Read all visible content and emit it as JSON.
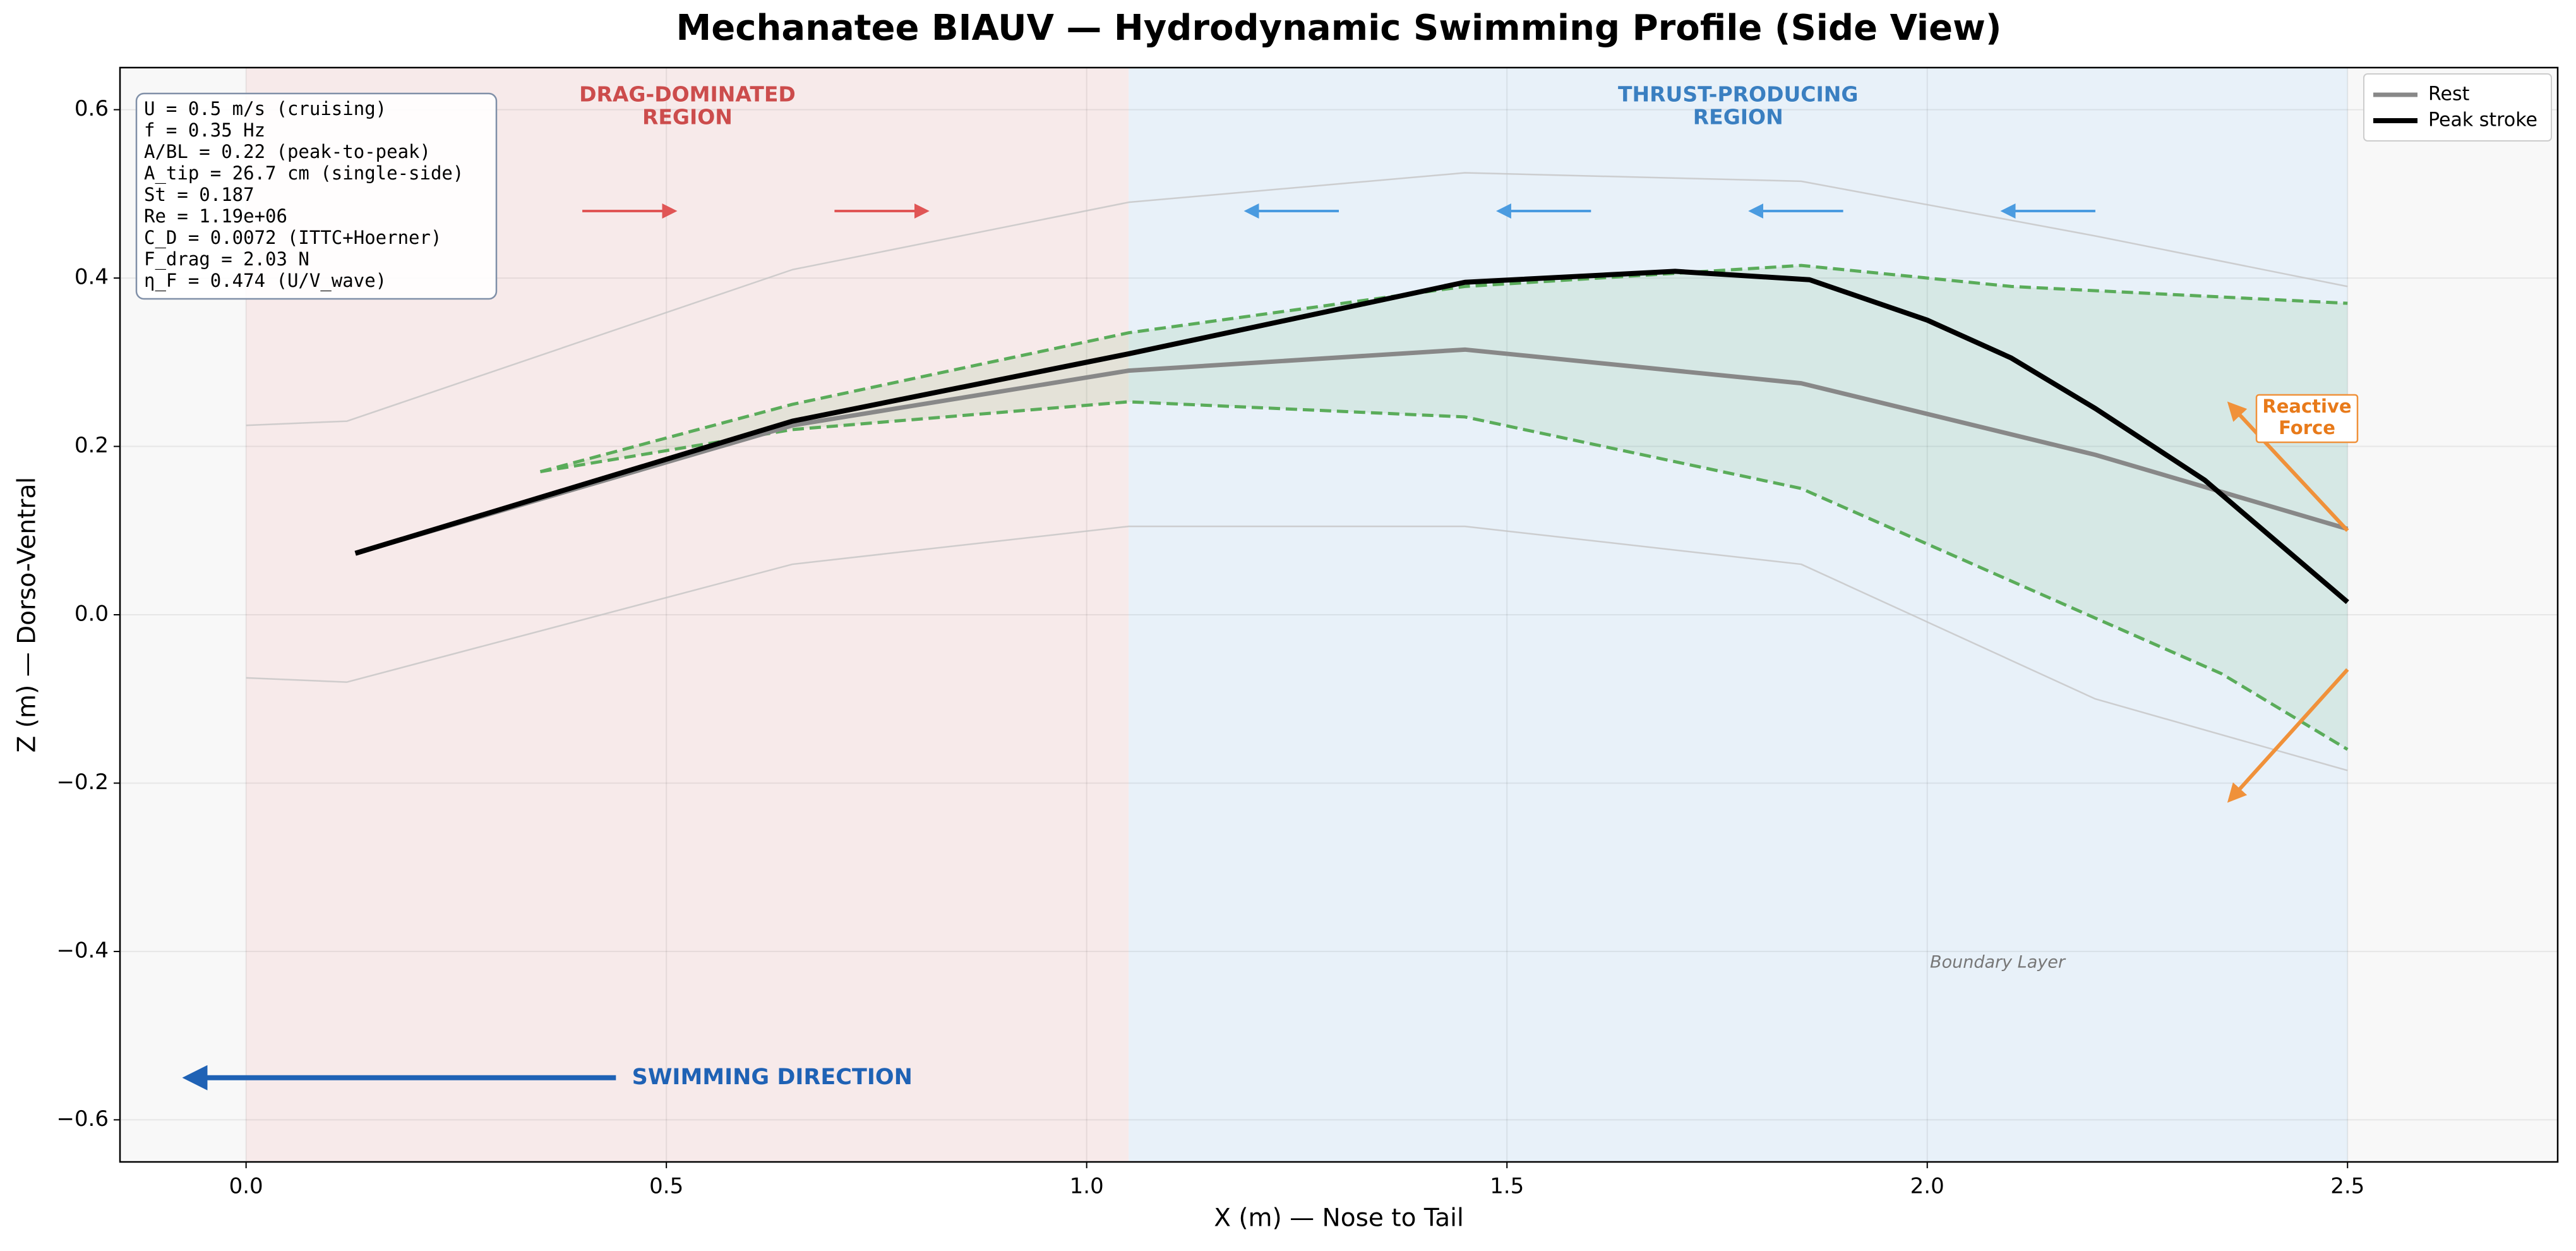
{
  "chart_data": {
    "type": "line",
    "title": "Mechanatee BIAUV — Hydrodynamic Swimming Profile (Side View)",
    "xlabel": "X (m) — Nose to Tail",
    "ylabel": "Z (m) — Dorso-Ventral",
    "xlim": [
      -0.15,
      2.75
    ],
    "ylim": [
      -0.65,
      0.65
    ],
    "xticks": [
      {
        "value": 0,
        "label": "0.0"
      },
      0.5,
      {
        "value": 1,
        "label": "1.0"
      },
      1.5,
      {
        "value": 2,
        "label": "2.0"
      },
      2.5
    ],
    "yticks": [
      {
        "value": -0.6,
        "label": "−0.6"
      },
      {
        "value": -0.4,
        "label": "−0.4"
      },
      {
        "value": -0.2,
        "label": "−0.2"
      },
      {
        "value": 0,
        "label": "0.0"
      },
      0.2,
      0.4,
      0.6
    ],
    "grid": true,
    "legend": "upper right",
    "regions": [
      {
        "label": [
          "DRAG-DOMINATED",
          "REGION"
        ],
        "x_range": [
          0,
          1.05
        ],
        "color": "#f7eaea",
        "text_color": "#cc4c4c"
      },
      {
        "label": [
          "THRUST-PRODUCING",
          "REGION"
        ],
        "x_range": [
          1.05,
          2.5
        ],
        "color": "#e8f1f9",
        "text_color": "#3a7fc1"
      }
    ],
    "series": [
      {
        "color": "#c4c4c4",
        "style": "thin",
        "x": [
          0,
          0.12,
          0.65,
          1.05,
          1.45,
          1.85,
          2.2,
          2.5
        ],
        "values": [
          0.225,
          0.23,
          0.41,
          0.49,
          0.525,
          0.515,
          0.45,
          0.39
        ]
      },
      {
        "color": "#c4c4c4",
        "style": "thin",
        "x": [
          0,
          0.12,
          0.65,
          1.05,
          1.45,
          1.85,
          2.2,
          2.5
        ],
        "values": [
          -0.075,
          -0.08,
          0.06,
          0.105,
          0.105,
          0.06,
          -0.1,
          -0.185
        ]
      },
      {
        "color": "#5aac5a",
        "style": "dashed",
        "x": [
          0.35,
          0.65,
          1.05,
          1.45,
          1.85,
          2.1,
          2.5
        ],
        "values": [
          0.17,
          0.25,
          0.335,
          0.39,
          0.415,
          0.39,
          0.37
        ]
      },
      {
        "color": "#5aac5a",
        "style": "dashed",
        "x": [
          0.35,
          0.65,
          1.05,
          1.45,
          1.85,
          2.1,
          2.35,
          2.5
        ],
        "values": [
          0.17,
          0.22,
          0.253,
          0.235,
          0.15,
          0.04,
          -0.07,
          -0.16
        ]
      },
      {
        "name": "Rest",
        "color": "#888888",
        "style": "medium",
        "x": [
          0.13,
          0.65,
          1.05,
          1.45,
          1.85,
          2.2,
          2.5
        ],
        "values": [
          0.073,
          0.225,
          0.29,
          0.315,
          0.275,
          0.19,
          0.102
        ]
      },
      {
        "name": "Peak stroke",
        "color": "#000000",
        "style": "bold",
        "x": [
          0.13,
          0.65,
          1.05,
          1.45,
          1.7,
          1.86,
          2.0,
          2.1,
          2.2,
          2.33,
          2.5
        ],
        "values": [
          0.073,
          0.23,
          0.31,
          0.395,
          0.408,
          0.398,
          0.35,
          0.305,
          0.245,
          0.16,
          0.015
        ]
      }
    ],
    "info_box": [
      "U = 0.5 m/s (cruising)",
      "f = 0.35 Hz",
      "A/BL = 0.22 (peak-to-peak)",
      "A_tip = 26.7 cm (single-side)",
      "St = 0.187",
      "Re = 1.19e+06",
      "C_D = 0.0072 (ITTC+Hoerner)",
      "F_drag = 2.03 N",
      "η_F = 0.474 (U/V_wave)"
    ],
    "annotations": {
      "swimming": "SWIMMING DIRECTION",
      "reactive": [
        "Reactive",
        "Force"
      ],
      "boundary": "Boundary Layer"
    }
  }
}
